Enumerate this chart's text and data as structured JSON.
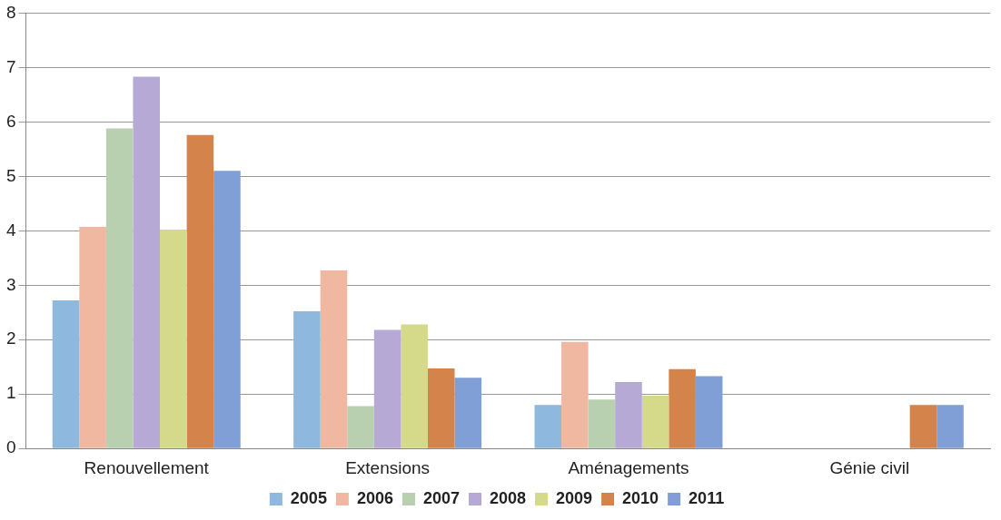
{
  "chart_data": {
    "type": "bar",
    "categories": [
      "Renouvellement",
      "Extensions",
      "Aménagements",
      "Génie civil"
    ],
    "series": [
      {
        "name": "2005",
        "color": "#8fb8df",
        "values": [
          2.72,
          2.52,
          0.8,
          null
        ]
      },
      {
        "name": "2006",
        "color": "#f0b8a0",
        "values": [
          4.07,
          3.27,
          1.96,
          null
        ]
      },
      {
        "name": "2007",
        "color": "#b8cfb0",
        "values": [
          5.88,
          0.78,
          0.9,
          null
        ]
      },
      {
        "name": "2008",
        "color": "#b7a9d6",
        "values": [
          6.83,
          2.18,
          1.22,
          null
        ]
      },
      {
        "name": "2009",
        "color": "#d5d98a",
        "values": [
          4.02,
          2.28,
          0.97,
          null
        ]
      },
      {
        "name": "2010",
        "color": "#d4834a",
        "values": [
          5.76,
          1.47,
          1.46,
          0.8
        ]
      },
      {
        "name": "2011",
        "color": "#7f9fd6",
        "values": [
          5.1,
          1.3,
          1.33,
          0.8
        ]
      }
    ],
    "ylim": [
      0,
      8
    ],
    "yticks": [
      0,
      1,
      2,
      3,
      4,
      5,
      6,
      7,
      8
    ],
    "grid": "y",
    "legend": "bottom"
  }
}
